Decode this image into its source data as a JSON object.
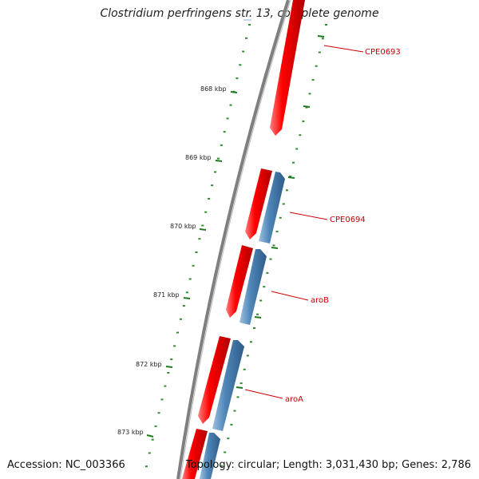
{
  "title": "Clostridium perfringens str. 13, complete genome",
  "footer": {
    "accession": "Accession: NC_003366",
    "summary": "Topology: circular; Length: 3,031,430 bp; Genes: 2,786"
  },
  "ticks": [
    "868 kbp",
    "869 kbp",
    "870 kbp",
    "871 kbp",
    "872 kbp",
    "873 kbp"
  ],
  "genes": [
    {
      "label": "CPE0693"
    },
    {
      "label": "CPE0694"
    },
    {
      "label": "aroB"
    },
    {
      "label": "aroA"
    }
  ],
  "colors": {
    "backbone": "#7f7f7f",
    "forward_strand": "#ff0000",
    "reverse_strand": "#4a7fae",
    "tick": "#2e8b2e",
    "label": "#cc0000"
  }
}
